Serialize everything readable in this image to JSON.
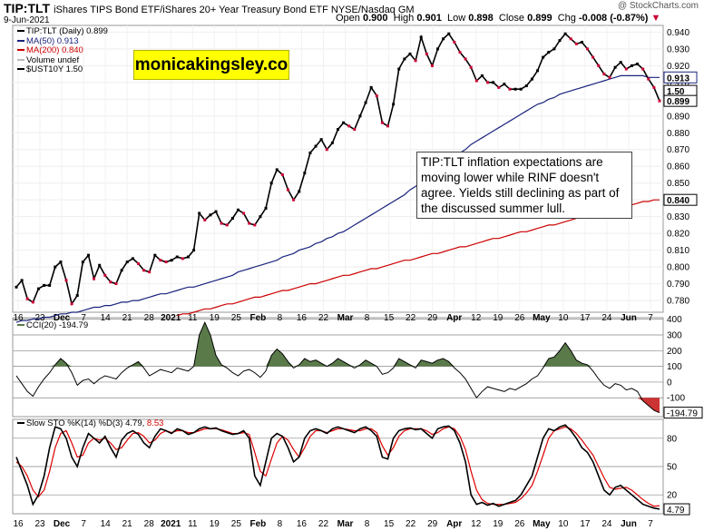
{
  "header": {
    "ticker": "TIP:TLT",
    "description": "iShares TIPS Bond ETF/iShares 20+ Year Treasury Bond ETF  NYSE/Nasdaq GM",
    "date": "9-Jun-2021",
    "source": "@ StockCharts.com"
  },
  "ohlc": {
    "open_label": "Open",
    "open": "0.900",
    "high_label": "High",
    "high": "0.901",
    "low_label": "Low",
    "low": "0.898",
    "close_label": "Close",
    "close": "0.899",
    "chg_label": "Chg",
    "chg": "-0.008 (-0.87%)"
  },
  "legend": {
    "main": "TIP:TLT (Daily) 0.899",
    "ma50": "MA(50) 0.913",
    "ma200": "MA(200) 0.840",
    "volume": "Volume undef",
    "ust": "$UST10Y 1.50",
    "cci": "CCI(20) -194.79",
    "sto_label": "Slow STO %K(14) %D(3)",
    "sto_k": "4.79",
    "sto_d": "8.53"
  },
  "branding": {
    "site": "monicakingsley.co"
  },
  "annotation": {
    "text": "TIP:TLT inflation expectations are moving lower while RINF doesn't agree. Yields still declining as part of the discussed summer lull."
  },
  "colors": {
    "price": "#000000",
    "ma50": "#1a237e",
    "ma200": "#cc0000",
    "down_candle": "#cc0033",
    "cci_fill": "#5a7a4a",
    "sto_k": "#000000",
    "sto_d": "#dd0000"
  },
  "chart_data": [
    {
      "type": "line",
      "title": "TIP:TLT (Daily)",
      "y_ticks": [
        "0.940",
        "0.930",
        "0.920",
        "0.910",
        "0.900",
        "0.890",
        "0.880",
        "0.870",
        "0.860",
        "0.850",
        "0.840",
        "0.830",
        "0.820",
        "0.810",
        "0.800",
        "0.790",
        "0.780"
      ],
      "ylim": [
        0.773,
        0.944
      ],
      "x_tick_labels": [
        "16",
        "23",
        "Dec",
        "7",
        "14",
        "21",
        "28",
        "2021",
        "11",
        "19",
        "25",
        "Feb",
        "8",
        "16",
        "22",
        "Mar",
        "8",
        "15",
        "22",
        "29",
        "Apr",
        "12",
        "19",
        "26",
        "May",
        "10",
        "17",
        "24",
        "Jun",
        "7"
      ],
      "price_labels": [
        "1.50",
        "0.913",
        "0.899",
        "0.840"
      ],
      "series": [
        {
          "name": "TIP:TLT (Daily)",
          "values": [
            0.788,
            0.792,
            0.781,
            0.779,
            0.787,
            0.789,
            0.789,
            0.8,
            0.803,
            0.792,
            0.778,
            0.783,
            0.803,
            0.807,
            0.793,
            0.801,
            0.795,
            0.791,
            0.79,
            0.798,
            0.803,
            0.805,
            0.802,
            0.798,
            0.797,
            0.807,
            0.804,
            0.803,
            0.804,
            0.806,
            0.805,
            0.806,
            0.81,
            0.832,
            0.828,
            0.831,
            0.833,
            0.826,
            0.825,
            0.829,
            0.834,
            0.832,
            0.826,
            0.825,
            0.83,
            0.835,
            0.85,
            0.858,
            0.855,
            0.846,
            0.84,
            0.845,
            0.856,
            0.868,
            0.872,
            0.876,
            0.87,
            0.874,
            0.882,
            0.886,
            0.884,
            0.882,
            0.89,
            0.898,
            0.907,
            0.902,
            0.886,
            0.884,
            0.897,
            0.918,
            0.924,
            0.927,
            0.923,
            0.937,
            0.927,
            0.92,
            0.93,
            0.936,
            0.939,
            0.934,
            0.928,
            0.924,
            0.919,
            0.911,
            0.914,
            0.91,
            0.91,
            0.907,
            0.909,
            0.906,
            0.906,
            0.906,
            0.908,
            0.912,
            0.917,
            0.925,
            0.928,
            0.93,
            0.935,
            0.939,
            0.936,
            0.933,
            0.934,
            0.93,
            0.925,
            0.92,
            0.915,
            0.913,
            0.919,
            0.922,
            0.918,
            0.92,
            0.921,
            0.918,
            0.912,
            0.907,
            0.899
          ]
        },
        {
          "name": "MA(50)",
          "values": [
            0.767,
            0.768,
            0.768,
            0.769,
            0.769,
            0.77,
            0.77,
            0.771,
            0.772,
            0.772,
            0.773,
            0.773,
            0.774,
            0.775,
            0.776,
            0.776,
            0.777,
            0.777,
            0.778,
            0.779,
            0.779,
            0.78,
            0.78,
            0.781,
            0.782,
            0.783,
            0.784,
            0.784,
            0.785,
            0.786,
            0.787,
            0.788,
            0.788,
            0.789,
            0.79,
            0.791,
            0.792,
            0.793,
            0.794,
            0.795,
            0.797,
            0.798,
            0.799,
            0.8,
            0.801,
            0.802,
            0.803,
            0.804,
            0.806,
            0.807,
            0.808,
            0.81,
            0.811,
            0.812,
            0.814,
            0.815,
            0.817,
            0.818,
            0.82,
            0.821,
            0.823,
            0.825,
            0.827,
            0.829,
            0.831,
            0.833,
            0.835,
            0.837,
            0.839,
            0.841,
            0.843,
            0.846,
            0.848,
            0.851,
            0.853,
            0.856,
            0.858,
            0.861,
            0.863,
            0.866,
            0.868,
            0.87,
            0.873,
            0.875,
            0.877,
            0.879,
            0.881,
            0.883,
            0.885,
            0.887,
            0.889,
            0.891,
            0.893,
            0.895,
            0.897,
            0.898,
            0.9,
            0.901,
            0.903,
            0.904,
            0.905,
            0.906,
            0.907,
            0.908,
            0.909,
            0.91,
            0.911,
            0.912,
            0.913,
            0.914,
            0.914,
            0.914,
            0.914,
            0.914,
            0.913,
            0.913,
            0.913
          ]
        },
        {
          "name": "MA(200)",
          "values": [
            0.771,
            0.772,
            0.772,
            0.773,
            0.774,
            0.775,
            0.775,
            0.776,
            0.777,
            0.778,
            0.778,
            0.779,
            0.78,
            0.781,
            0.782,
            0.782,
            0.783,
            0.784,
            0.785,
            0.786,
            0.786,
            0.787,
            0.788,
            0.789,
            0.79,
            0.79,
            0.791,
            0.792,
            0.793,
            0.794,
            0.795,
            0.795,
            0.796,
            0.797,
            0.798,
            0.799,
            0.799,
            0.8,
            0.801,
            0.802,
            0.803,
            0.804,
            0.804,
            0.805,
            0.806,
            0.807,
            0.808,
            0.808,
            0.809,
            0.81,
            0.811,
            0.812,
            0.812,
            0.813,
            0.814,
            0.815,
            0.816,
            0.817,
            0.817,
            0.818,
            0.819,
            0.82,
            0.821,
            0.821,
            0.822,
            0.823,
            0.824,
            0.825,
            0.825,
            0.826,
            0.827,
            0.828,
            0.829,
            0.83,
            0.83,
            0.831,
            0.832,
            0.833,
            0.834,
            0.834,
            0.835,
            0.836,
            0.837,
            0.838,
            0.839,
            0.839,
            0.84,
            0.84
          ]
        }
      ]
    },
    {
      "type": "area",
      "title": "CCI(20)",
      "y_ticks": [
        "400",
        "300",
        "200",
        "100",
        "0",
        "-100"
      ],
      "ylim": [
        -220,
        410
      ],
      "series": [
        {
          "name": "CCI(20)",
          "values": [
            40,
            -10,
            -60,
            -90,
            -30,
            20,
            60,
            110,
            150,
            120,
            60,
            -20,
            10,
            20,
            -10,
            20,
            40,
            30,
            20,
            60,
            90,
            110,
            130,
            90,
            40,
            60,
            80,
            70,
            60,
            90,
            80,
            70,
            100,
            300,
            380,
            300,
            170,
            110,
            90,
            60,
            40,
            70,
            80,
            60,
            30,
            70,
            170,
            210,
            180,
            130,
            90,
            110,
            150,
            130,
            140,
            120,
            100,
            120,
            150,
            130,
            110,
            90,
            110,
            140,
            120,
            100,
            50,
            60,
            90,
            150,
            130,
            110,
            90,
            140,
            130,
            120,
            140,
            150,
            130,
            90,
            60,
            20,
            -40,
            -100,
            -60,
            -30,
            -40,
            -50,
            -60,
            -40,
            -50,
            -30,
            -10,
            20,
            40,
            90,
            150,
            160,
            200,
            250,
            200,
            140,
            120,
            110,
            70,
            20,
            -20,
            -40,
            -10,
            -20,
            -50,
            -40,
            -60,
            -120,
            -150,
            -180,
            -195
          ]
        }
      ]
    },
    {
      "type": "line",
      "title": "Slow STO %K(14) %D(3)",
      "y_ticks": [
        "80",
        "50",
        "20"
      ],
      "ylim": [
        0,
        100
      ],
      "series": [
        {
          "name": "%K",
          "values": [
            60,
            45,
            30,
            10,
            20,
            40,
            70,
            92,
            90,
            80,
            60,
            50,
            70,
            85,
            80,
            75,
            82,
            70,
            60,
            78,
            85,
            88,
            84,
            75,
            70,
            82,
            90,
            88,
            85,
            90,
            88,
            84,
            86,
            90,
            92,
            90,
            91,
            88,
            86,
            84,
            85,
            88,
            80,
            40,
            30,
            55,
            80,
            85,
            82,
            70,
            55,
            60,
            80,
            88,
            90,
            88,
            85,
            90,
            92,
            90,
            88,
            86,
            90,
            92,
            88,
            82,
            60,
            58,
            80,
            88,
            90,
            91,
            89,
            90,
            85,
            80,
            90,
            92,
            93,
            88,
            75,
            55,
            20,
            10,
            12,
            9,
            11,
            8,
            10,
            12,
            14,
            20,
            30,
            40,
            60,
            80,
            90,
            88,
            92,
            94,
            88,
            80,
            70,
            65,
            55,
            40,
            25,
            20,
            28,
            30,
            25,
            20,
            15,
            10,
            8,
            6,
            5
          ]
        },
        {
          "name": "%D",
          "values": [
            55,
            50,
            40,
            25,
            18,
            25,
            45,
            70,
            85,
            88,
            75,
            60,
            62,
            75,
            80,
            78,
            80,
            75,
            68,
            70,
            78,
            85,
            86,
            82,
            75,
            78,
            85,
            88,
            86,
            88,
            88,
            86,
            86,
            88,
            90,
            90,
            90,
            89,
            87,
            85,
            85,
            86,
            84,
            65,
            45,
            40,
            58,
            75,
            82,
            78,
            68,
            60,
            70,
            82,
            88,
            88,
            86,
            88,
            90,
            90,
            89,
            88,
            88,
            90,
            90,
            86,
            72,
            62,
            70,
            82,
            88,
            90,
            90,
            90,
            88,
            84,
            86,
            90,
            92,
            90,
            82,
            68,
            45,
            25,
            15,
            11,
            10,
            10,
            10,
            11,
            12,
            16,
            22,
            30,
            45,
            62,
            80,
            88,
            90,
            92,
            90,
            85,
            78,
            70,
            62,
            50,
            38,
            28,
            26,
            27,
            28,
            25,
            20,
            15,
            11,
            8,
            8.53
          ]
        }
      ]
    }
  ]
}
